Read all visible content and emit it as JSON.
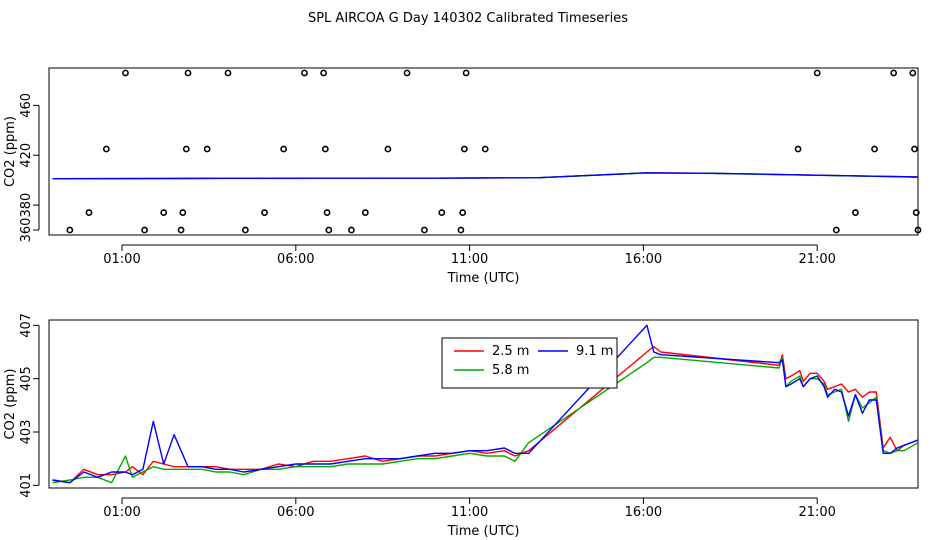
{
  "title": "SPL AIRCOA G  Day 140302  Calibrated Timeseries",
  "chart_data": [
    {
      "type": "scatter",
      "xlabel": "Time (UTC)",
      "ylabel": "CO2 (ppm)",
      "xlim": [
        -1.1,
        23.9
      ],
      "ylim": [
        356,
        490
      ],
      "xticks": [
        1,
        6,
        11,
        16,
        21
      ],
      "xtick_labels": [
        "01:00",
        "06:00",
        "11:00",
        "16:00",
        "21:00"
      ],
      "yticks": [
        360,
        380,
        420,
        460
      ],
      "ytick_labels": [
        "360",
        "380",
        "420",
        "460"
      ],
      "points": [
        {
          "x": -0.5,
          "y": 360
        },
        {
          "x": 0.05,
          "y": 374
        },
        {
          "x": 0.55,
          "y": 425
        },
        {
          "x": 1.1,
          "y": 486
        },
        {
          "x": 1.65,
          "y": 360
        },
        {
          "x": 2.2,
          "y": 374
        },
        {
          "x": 2.7,
          "y": 360
        },
        {
          "x": 2.75,
          "y": 374
        },
        {
          "x": 2.85,
          "y": 425
        },
        {
          "x": 2.9,
          "y": 486
        },
        {
          "x": 3.45,
          "y": 425
        },
        {
          "x": 4.05,
          "y": 486
        },
        {
          "x": 4.55,
          "y": 360
        },
        {
          "x": 5.1,
          "y": 374
        },
        {
          "x": 5.65,
          "y": 425
        },
        {
          "x": 6.25,
          "y": 486
        },
        {
          "x": 6.8,
          "y": 486
        },
        {
          "x": 6.85,
          "y": 425
        },
        {
          "x": 6.9,
          "y": 374
        },
        {
          "x": 6.95,
          "y": 360
        },
        {
          "x": 7.6,
          "y": 360
        },
        {
          "x": 8.0,
          "y": 374
        },
        {
          "x": 8.65,
          "y": 425
        },
        {
          "x": 9.2,
          "y": 486
        },
        {
          "x": 9.7,
          "y": 360
        },
        {
          "x": 10.2,
          "y": 374
        },
        {
          "x": 10.75,
          "y": 360
        },
        {
          "x": 10.8,
          "y": 374
        },
        {
          "x": 10.85,
          "y": 425
        },
        {
          "x": 10.9,
          "y": 486
        },
        {
          "x": 11.45,
          "y": 425
        },
        {
          "x": 20.45,
          "y": 425
        },
        {
          "x": 21.0,
          "y": 486
        },
        {
          "x": 21.55,
          "y": 360
        },
        {
          "x": 22.1,
          "y": 374
        },
        {
          "x": 22.65,
          "y": 425
        },
        {
          "x": 23.2,
          "y": 486
        },
        {
          "x": 23.75,
          "y": 486
        },
        {
          "x": 23.8,
          "y": 425
        },
        {
          "x": 23.85,
          "y": 374
        },
        {
          "x": 23.9,
          "y": 360
        }
      ],
      "series": [
        {
          "name": "2.5 m",
          "color": "#ff0000",
          "x": [
            -1.0,
            4.0,
            10.0,
            13.0,
            16.1,
            18.0,
            20.0,
            21.0,
            22.0,
            23.0,
            23.9
          ],
          "values": [
            401.2,
            401.5,
            401.6,
            402.0,
            405.9,
            405.5,
            404.5,
            404.0,
            403.5,
            403.0,
            402.5
          ]
        },
        {
          "name": "5.8 m",
          "color": "#00aa00",
          "x": [
            -1.0,
            4.0,
            10.0,
            13.0,
            16.1,
            18.0,
            20.0,
            21.0,
            22.0,
            23.0,
            23.9
          ],
          "values": [
            401.1,
            401.4,
            401.6,
            402.0,
            405.8,
            405.4,
            404.4,
            403.9,
            403.4,
            402.9,
            402.4
          ]
        },
        {
          "name": "9.1 m",
          "color": "#0000ff",
          "x": [
            -1.0,
            4.0,
            10.0,
            13.0,
            16.1,
            18.0,
            20.0,
            21.0,
            22.0,
            23.0,
            23.9
          ],
          "values": [
            401.2,
            401.5,
            401.6,
            402.0,
            405.9,
            405.5,
            404.5,
            404.0,
            403.5,
            403.0,
            402.5
          ]
        }
      ]
    },
    {
      "type": "line",
      "xlabel": "Time (UTC)",
      "ylabel": "CO2 (ppm)",
      "xlim": [
        -1.1,
        23.9
      ],
      "ylim": [
        400.9,
        407.2
      ],
      "xticks": [
        1,
        6,
        11,
        16,
        21
      ],
      "xtick_labels": [
        "01:00",
        "06:00",
        "11:00",
        "16:00",
        "21:00"
      ],
      "yticks": [
        401,
        403,
        405,
        407
      ],
      "ytick_labels": [
        "401",
        "403",
        "405",
        "407"
      ],
      "legend": {
        "position": "top-center",
        "entries": [
          "2.5 m",
          "9.1 m",
          "5.8 m"
        ]
      },
      "series": [
        {
          "name": "2.5 m",
          "color": "#ff0000",
          "x": [
            -1.0,
            -0.5,
            -0.1,
            0.3,
            0.7,
            1.1,
            1.3,
            1.6,
            1.9,
            2.2,
            2.5,
            2.9,
            3.3,
            3.7,
            4.1,
            4.5,
            5.0,
            5.5,
            6.0,
            6.5,
            7.0,
            7.5,
            8.0,
            8.5,
            9.0,
            9.5,
            10.0,
            10.5,
            11.0,
            11.5,
            12.0,
            12.3,
            12.7,
            16.1,
            16.3,
            16.5,
            19.9,
            20.0,
            20.1,
            20.25,
            20.5,
            20.6,
            20.8,
            21.0,
            21.2,
            21.3,
            21.5,
            21.7,
            21.9,
            22.1,
            22.3,
            22.5,
            22.7,
            22.9,
            23.1,
            23.3,
            23.5,
            23.9
          ],
          "values": [
            401.2,
            401.1,
            401.6,
            401.4,
            401.4,
            401.5,
            401.7,
            401.4,
            401.9,
            401.8,
            401.7,
            401.7,
            401.7,
            401.7,
            401.6,
            401.6,
            401.6,
            401.8,
            401.7,
            401.9,
            401.9,
            402.0,
            402.1,
            401.9,
            402.0,
            402.1,
            402.1,
            402.2,
            402.3,
            402.2,
            402.3,
            402.1,
            402.3,
            406.0,
            406.2,
            406.0,
            405.5,
            405.9,
            405.0,
            405.1,
            405.3,
            404.9,
            405.2,
            405.2,
            404.9,
            404.6,
            404.7,
            404.8,
            404.5,
            404.6,
            404.3,
            404.5,
            404.5,
            402.4,
            402.8,
            402.3,
            402.5,
            402.7
          ]
        },
        {
          "name": "5.8 m",
          "color": "#00aa00",
          "x": [
            -1.0,
            -0.5,
            -0.1,
            0.3,
            0.7,
            1.1,
            1.3,
            1.6,
            1.9,
            2.2,
            2.5,
            2.9,
            3.3,
            3.7,
            4.1,
            4.5,
            5.0,
            5.5,
            6.0,
            6.5,
            7.0,
            7.5,
            8.0,
            8.5,
            9.0,
            9.5,
            10.0,
            10.5,
            11.0,
            11.5,
            12.0,
            12.3,
            12.7,
            16.1,
            16.3,
            16.5,
            19.9,
            20.0,
            20.1,
            20.25,
            20.5,
            20.6,
            20.8,
            21.0,
            21.2,
            21.3,
            21.5,
            21.7,
            21.9,
            22.1,
            22.3,
            22.5,
            22.7,
            22.9,
            23.1,
            23.3,
            23.5,
            23.9
          ],
          "values": [
            401.1,
            401.2,
            401.3,
            401.3,
            401.1,
            402.1,
            401.3,
            401.5,
            401.7,
            401.6,
            401.6,
            401.6,
            401.6,
            401.5,
            401.5,
            401.4,
            401.6,
            401.6,
            401.7,
            401.7,
            401.7,
            401.8,
            401.8,
            401.8,
            401.9,
            402.0,
            402.0,
            402.1,
            402.2,
            402.1,
            402.1,
            401.9,
            402.6,
            405.6,
            405.8,
            405.8,
            405.4,
            405.8,
            404.7,
            404.9,
            405.1,
            404.7,
            405.0,
            405.0,
            404.8,
            404.4,
            404.5,
            404.6,
            403.4,
            404.4,
            403.9,
            404.1,
            404.3,
            402.3,
            402.2,
            402.3,
            402.3,
            402.6
          ]
        },
        {
          "name": "9.1 m",
          "color": "#0000ff",
          "x": [
            -1.0,
            -0.5,
            -0.1,
            0.3,
            0.7,
            1.1,
            1.3,
            1.6,
            1.9,
            2.2,
            2.5,
            2.9,
            3.3,
            3.7,
            4.1,
            4.5,
            5.0,
            5.5,
            6.0,
            6.5,
            7.0,
            7.5,
            8.0,
            8.5,
            9.0,
            9.5,
            10.0,
            10.5,
            11.0,
            11.5,
            12.0,
            12.3,
            12.7,
            16.1,
            16.3,
            16.5,
            19.9,
            20.0,
            20.1,
            20.25,
            20.5,
            20.6,
            20.8,
            21.0,
            21.2,
            21.3,
            21.5,
            21.7,
            21.9,
            22.1,
            22.3,
            22.5,
            22.7,
            22.9,
            23.1,
            23.3,
            23.5,
            23.9
          ],
          "values": [
            401.2,
            401.1,
            401.5,
            401.3,
            401.5,
            401.5,
            401.4,
            401.6,
            403.4,
            401.8,
            402.9,
            401.7,
            401.7,
            401.6,
            401.6,
            401.5,
            401.6,
            401.7,
            401.8,
            401.8,
            401.8,
            401.9,
            402.0,
            402.0,
            402.0,
            402.1,
            402.2,
            402.2,
            402.3,
            402.3,
            402.4,
            402.2,
            402.2,
            407.0,
            406.0,
            405.9,
            405.6,
            405.7,
            404.7,
            404.8,
            405.0,
            404.7,
            405.0,
            405.1,
            404.7,
            404.3,
            404.6,
            404.5,
            403.6,
            404.4,
            403.7,
            404.2,
            404.2,
            402.2,
            402.2,
            402.4,
            402.5,
            402.7
          ]
        }
      ]
    }
  ]
}
